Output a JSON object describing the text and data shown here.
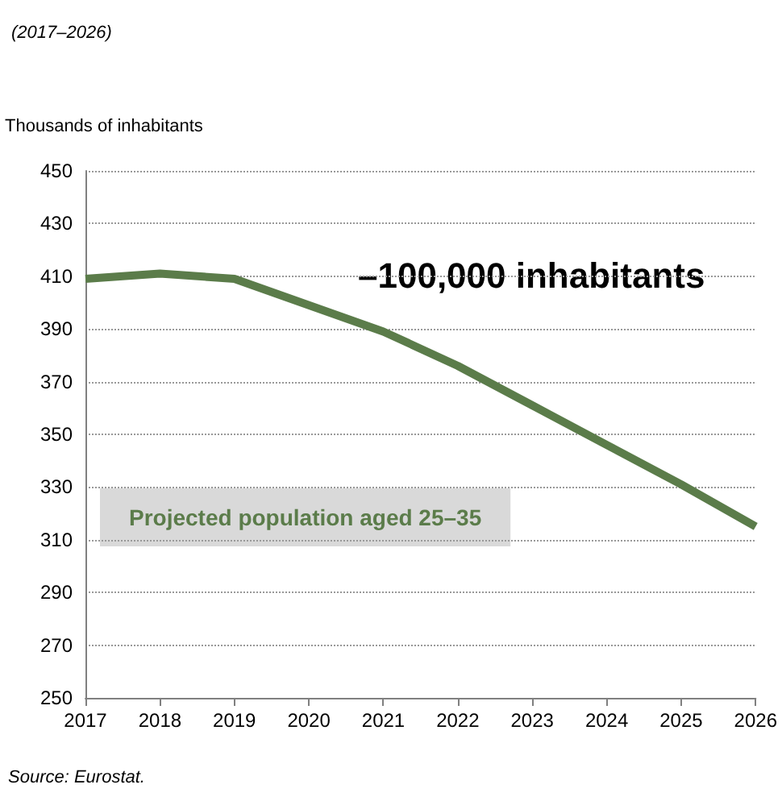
{
  "chart_data": {
    "type": "line",
    "title": "(2017–2026)",
    "ylabel": "Thousands of inhabitants",
    "categories": [
      "2017",
      "2018",
      "2019",
      "2020",
      "2021",
      "2022",
      "2023",
      "2024",
      "2025",
      "2026"
    ],
    "values": [
      409,
      411,
      409,
      399,
      389,
      376,
      361,
      346,
      331,
      315
    ],
    "color": "#5b7c4a",
    "ylim": [
      250,
      450
    ],
    "yticks": [
      250,
      270,
      290,
      310,
      330,
      350,
      370,
      390,
      410,
      430,
      450
    ],
    "grid": "y",
    "marker": "none",
    "annotations": [
      "–100,000 inhabitants",
      "Projected population aged 25–35",
      "Source: Eurostat."
    ]
  }
}
